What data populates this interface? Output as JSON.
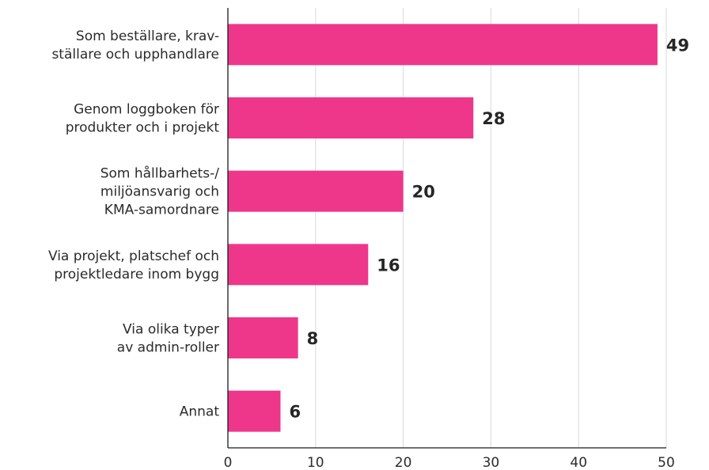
{
  "colors": {
    "bar": "#ee378b",
    "grid": "#d9d9d9",
    "axis": "#1a1a1a",
    "text": "#2b2b2b"
  },
  "chart_data": {
    "type": "bar",
    "orientation": "horizontal",
    "categories": [
      [
        "Som beställare, krav-",
        "ställare och upphandlare"
      ],
      [
        "Genom loggboken för",
        "produkter och i projekt"
      ],
      [
        "Som hållbarhets-/",
        "miljöansvarig och",
        "KMA-samordnare"
      ],
      [
        "Via projekt, platschef och",
        "projektledare inom bygg"
      ],
      [
        "Via olika typer",
        "av admin-roller"
      ],
      [
        "Annat"
      ]
    ],
    "values": [
      49,
      28,
      20,
      16,
      8,
      6
    ],
    "value_labels": [
      "49",
      "28",
      "20",
      "16",
      "8",
      "6"
    ],
    "xlim": [
      0,
      50
    ],
    "xticks": [
      0,
      10,
      20,
      30,
      40,
      50
    ],
    "xtick_labels": [
      "0",
      "10",
      "20",
      "30",
      "40",
      "50"
    ],
    "grid": "vertical",
    "legend": "none"
  }
}
